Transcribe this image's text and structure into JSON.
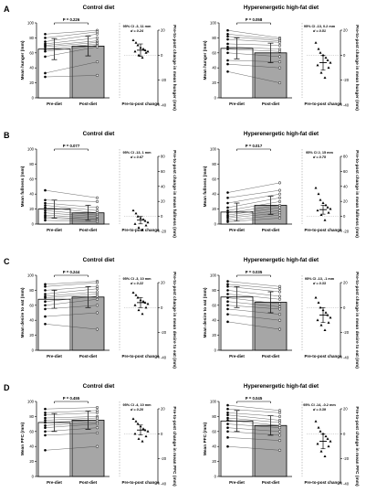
{
  "categories": [
    "Pre-diet",
    "Post-diet",
    "Pre-to-post change"
  ],
  "chart_data": [
    {
      "type": "bar",
      "panel": "A",
      "title": "Control diet",
      "ylabel": "Mean hunger (mm)",
      "y2label": "Pre-to-post change in mean hunger (mm)",
      "ylim": [
        0,
        100
      ],
      "yticks": [
        0,
        20,
        40,
        60,
        80,
        100
      ],
      "y2lim": [
        -40,
        20
      ],
      "y2ticks": [
        -40,
        -20,
        0,
        20
      ],
      "values": [
        65,
        69
      ],
      "error": [
        14,
        13
      ],
      "p_value": "P = 0.226",
      "ci": "95% CI -3, 11 mm",
      "d": "d = 0.24",
      "pre": [
        85,
        80,
        75,
        72,
        70,
        68,
        65,
        62,
        55,
        33,
        28
      ],
      "post": [
        90,
        88,
        85,
        80,
        76,
        74,
        72,
        70,
        68,
        48,
        30
      ],
      "change": [
        12,
        10,
        8,
        6,
        5,
        4,
        3,
        3,
        2,
        0,
        -2
      ],
      "change_mean": 4,
      "change_err": 5
    },
    {
      "type": "bar",
      "panel": "A",
      "title": "Hyperenergetic high-fat diet",
      "ylabel": "Mean hunger (mm)",
      "y2label": "Pre-to-post change in mean hunger (mm)",
      "ylim": [
        0,
        100
      ],
      "yticks": [
        0,
        20,
        40,
        60,
        80,
        100
      ],
      "y2lim": [
        -40,
        20
      ],
      "y2ticks": [
        -40,
        -20,
        0,
        20
      ],
      "values": [
        66,
        60
      ],
      "error": [
        14,
        13
      ],
      "p_value": "P = 0.058",
      "ci": "95% CI -13, 0.2 mm",
      "d": "d = 0.51",
      "pre": [
        90,
        85,
        82,
        78,
        72,
        68,
        65,
        60,
        50,
        45,
        35
      ],
      "post": [
        80,
        78,
        76,
        74,
        70,
        65,
        62,
        55,
        48,
        40,
        20
      ],
      "change": [
        10,
        5,
        2,
        0,
        -2,
        -4,
        -6,
        -8,
        -10,
        -14,
        -18
      ],
      "change_mean": -6,
      "change_err": 6
    },
    {
      "type": "bar",
      "panel": "B",
      "title": "Control diet",
      "ylabel": "Mean fullness (mm)",
      "y2label": "Pre-to-post change in mean fullness (mm)",
      "ylim": [
        0,
        100
      ],
      "yticks": [
        0,
        20,
        40,
        60,
        80,
        100
      ],
      "y2lim": [
        -20,
        80
      ],
      "y2ticks": [
        -20,
        0,
        20,
        40,
        60,
        80
      ],
      "values": [
        20,
        15
      ],
      "error": [
        12,
        10
      ],
      "p_value": "P = 0.077",
      "ci": "95% CI -13, 1 mm",
      "d": "d = 0.67",
      "pre": [
        45,
        32,
        28,
        25,
        22,
        18,
        15,
        12,
        10,
        8,
        5
      ],
      "post": [
        35,
        30,
        22,
        18,
        15,
        12,
        10,
        8,
        6,
        5,
        3
      ],
      "change": [
        8,
        4,
        0,
        -2,
        -4,
        -6,
        -8,
        -10,
        -12,
        -15,
        -18
      ],
      "change_mean": -5,
      "change_err": 5
    },
    {
      "type": "bar",
      "panel": "B",
      "title": "Hyperenergetic high-fat diet",
      "ylabel": "Mean fullness (mm)",
      "y2label": "Pre-to-post change in mean fullness (mm)",
      "ylim": [
        0,
        100
      ],
      "yticks": [
        0,
        20,
        40,
        60,
        80,
        100
      ],
      "y2lim": [
        -20,
        80
      ],
      "y2ticks": [
        -20,
        0,
        20,
        40,
        60,
        80
      ],
      "values": [
        16,
        25
      ],
      "error": [
        12,
        12
      ],
      "p_value": "P = 0.017",
      "ci": "95% CI 2, 15 mm",
      "d": "d = 0.75",
      "pre": [
        42,
        35,
        28,
        22,
        18,
        15,
        12,
        10,
        8,
        5,
        3
      ],
      "post": [
        55,
        45,
        40,
        35,
        30,
        25,
        22,
        18,
        15,
        12,
        8
      ],
      "change": [
        38,
        30,
        22,
        18,
        15,
        12,
        10,
        8,
        5,
        2,
        -5
      ],
      "change_mean": 9,
      "change_err": 6
    },
    {
      "type": "bar",
      "panel": "C",
      "title": "Control diet",
      "ylabel": "Mean desire to eat (mm)",
      "y2label": "Pre-to-post change in mean desire to eat (mm)",
      "ylim": [
        0,
        100
      ],
      "yticks": [
        0,
        20,
        40,
        60,
        80,
        100
      ],
      "y2lim": [
        -40,
        20
      ],
      "y2ticks": [
        -40,
        -20,
        0,
        20
      ],
      "values": [
        68,
        71
      ],
      "error": [
        12,
        14
      ],
      "p_value": "P = 0.244",
      "ci": "95% CI -3, 10 mm",
      "d": "d = 0.22",
      "pre": [
        88,
        85,
        80,
        75,
        72,
        70,
        65,
        60,
        55,
        45,
        35
      ],
      "post": [
        92,
        90,
        85,
        82,
        78,
        75,
        72,
        68,
        60,
        50,
        28
      ],
      "change": [
        12,
        10,
        8,
        6,
        5,
        4,
        3,
        2,
        0,
        -2,
        -5
      ],
      "change_mean": 4,
      "change_err": 4
    },
    {
      "type": "bar",
      "panel": "C",
      "title": "Hyperenergetic high-fat diet",
      "ylabel": "Mean desire to eat (mm)",
      "y2label": "Pre-to-post change in mean desire to eat (mm)",
      "ylim": [
        0,
        100
      ],
      "yticks": [
        0,
        20,
        40,
        60,
        80,
        100
      ],
      "y2lim": [
        -40,
        20
      ],
      "y2ticks": [
        -40,
        -20,
        0,
        20
      ],
      "values": [
        71,
        64
      ],
      "error": [
        14,
        14
      ],
      "p_value": "P = 0.035",
      "ci": "95% CI -13, -1 mm",
      "d": "d = 0.33",
      "pre": [
        92,
        88,
        85,
        80,
        75,
        70,
        65,
        60,
        55,
        48,
        38
      ],
      "post": [
        85,
        82,
        78,
        72,
        68,
        62,
        58,
        55,
        48,
        40,
        28
      ],
      "change": [
        8,
        4,
        0,
        -2,
        -4,
        -6,
        -8,
        -10,
        -12,
        -14,
        -18
      ],
      "change_mean": -6,
      "change_err": 6
    },
    {
      "type": "bar",
      "panel": "D",
      "title": "Control diet",
      "ylabel": "Mean PFC (mm)",
      "y2label": "Pre-to-post change in mean PFC (mm)",
      "ylim": [
        0,
        100
      ],
      "yticks": [
        0,
        20,
        40,
        60,
        80,
        100
      ],
      "y2lim": [
        -40,
        20
      ],
      "y2ticks": [
        -40,
        -20,
        0,
        20
      ],
      "values": [
        72,
        75
      ],
      "error": [
        12,
        12
      ],
      "p_value": "P = 0.455",
      "ci": "95% CI -4, 10 mm",
      "d": "d = 0.20",
      "pre": [
        90,
        85,
        82,
        78,
        75,
        72,
        68,
        65,
        60,
        55,
        35
      ],
      "post": [
        92,
        88,
        85,
        80,
        78,
        75,
        72,
        70,
        65,
        58,
        40
      ],
      "change": [
        12,
        10,
        8,
        6,
        4,
        3,
        2,
        0,
        -2,
        -4,
        -6
      ],
      "change_mean": 3,
      "change_err": 4
    },
    {
      "type": "bar",
      "panel": "D",
      "title": "Hyperenergetic high-fat diet",
      "ylabel": "Mean PFC (mm)",
      "y2label": "Pre-to-post change in mean PFC (mm)",
      "ylim": [
        0,
        100
      ],
      "yticks": [
        0,
        20,
        40,
        60,
        80,
        100
      ],
      "y2lim": [
        -40,
        20
      ],
      "y2ticks": [
        -40,
        -20,
        0,
        20
      ],
      "values": [
        74,
        68
      ],
      "error": [
        14,
        13
      ],
      "p_value": "P = 0.045",
      "ci": "95% CI -14, -0.2 mm",
      "d": "d = 0.39",
      "pre": [
        95,
        90,
        85,
        82,
        78,
        75,
        70,
        65,
        60,
        52,
        40
      ],
      "post": [
        88,
        85,
        80,
        75,
        72,
        68,
        65,
        60,
        55,
        48,
        35
      ],
      "change": [
        10,
        5,
        2,
        0,
        -2,
        -4,
        -6,
        -8,
        -10,
        -14,
        -18
      ],
      "change_mean": -6,
      "change_err": 6
    }
  ]
}
